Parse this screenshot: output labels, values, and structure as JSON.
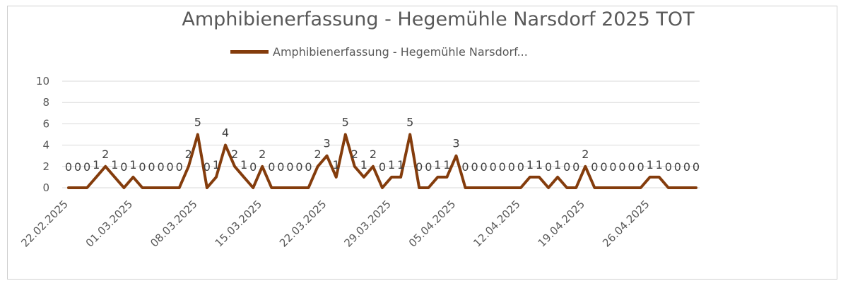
{
  "chart_data": {
    "type": "line",
    "title": "Amphibienerfassung - Hegemühle Narsdorf 2025 TOT",
    "xlabel": "",
    "ylabel": "",
    "ylim": [
      0,
      10
    ],
    "yticks": [
      "0",
      "2",
      "4",
      "6",
      "8",
      "10"
    ],
    "grid": true,
    "legend_position": "top",
    "x_tick_labels": [
      "22.02.2025",
      "01.03.2025",
      "08.03.2025",
      "15.03.2025",
      "22.03.2025",
      "29.03.2025",
      "05.04.2025",
      "12.04.2025",
      "19.04.2025",
      "26.04.2025"
    ],
    "x": [
      "22.02.2025",
      "23.02.2025",
      "24.02.2025",
      "25.02.2025",
      "26.02.2025",
      "27.02.2025",
      "28.02.2025",
      "01.03.2025",
      "02.03.2025",
      "03.03.2025",
      "04.03.2025",
      "05.03.2025",
      "06.03.2025",
      "07.03.2025",
      "08.03.2025",
      "09.03.2025",
      "10.03.2025",
      "11.03.2025",
      "12.03.2025",
      "13.03.2025",
      "14.03.2025",
      "15.03.2025",
      "16.03.2025",
      "17.03.2025",
      "18.03.2025",
      "19.03.2025",
      "20.03.2025",
      "21.03.2025",
      "22.03.2025",
      "23.03.2025",
      "24.03.2025",
      "25.03.2025",
      "26.03.2025",
      "27.03.2025",
      "28.03.2025",
      "29.03.2025",
      "30.03.2025",
      "31.03.2025",
      "01.04.2025",
      "02.04.2025",
      "03.04.2025",
      "04.04.2025",
      "05.04.2025",
      "06.04.2025",
      "07.04.2025",
      "08.04.2025",
      "09.04.2025",
      "10.04.2025",
      "11.04.2025",
      "12.04.2025",
      "13.04.2025",
      "14.04.2025",
      "15.04.2025",
      "16.04.2025",
      "17.04.2025",
      "18.04.2025",
      "19.04.2025",
      "20.04.2025",
      "21.04.2025",
      "22.04.2025",
      "23.04.2025",
      "24.04.2025",
      "25.04.2025",
      "26.04.2025",
      "27.04.2025",
      "28.04.2025",
      "29.04.2025",
      "30.04.2025",
      "01.05.2025"
    ],
    "series": [
      {
        "name": "Amphibienerfassung - Hegemühle Narsdorf...",
        "color": "#843c0c",
        "values": [
          0,
          0,
          0,
          1,
          2,
          1,
          0,
          1,
          0,
          0,
          0,
          0,
          0,
          2,
          5,
          0,
          1,
          4,
          2,
          1,
          0,
          2,
          0,
          0,
          0,
          0,
          0,
          2,
          3,
          1,
          5,
          2,
          1,
          2,
          0,
          1,
          1,
          5,
          0,
          0,
          1,
          1,
          3,
          0,
          0,
          0,
          0,
          0,
          0,
          0,
          1,
          1,
          0,
          1,
          0,
          0,
          2,
          0,
          0,
          0,
          0,
          0,
          0,
          1,
          1,
          0,
          0,
          0,
          0
        ]
      }
    ]
  }
}
